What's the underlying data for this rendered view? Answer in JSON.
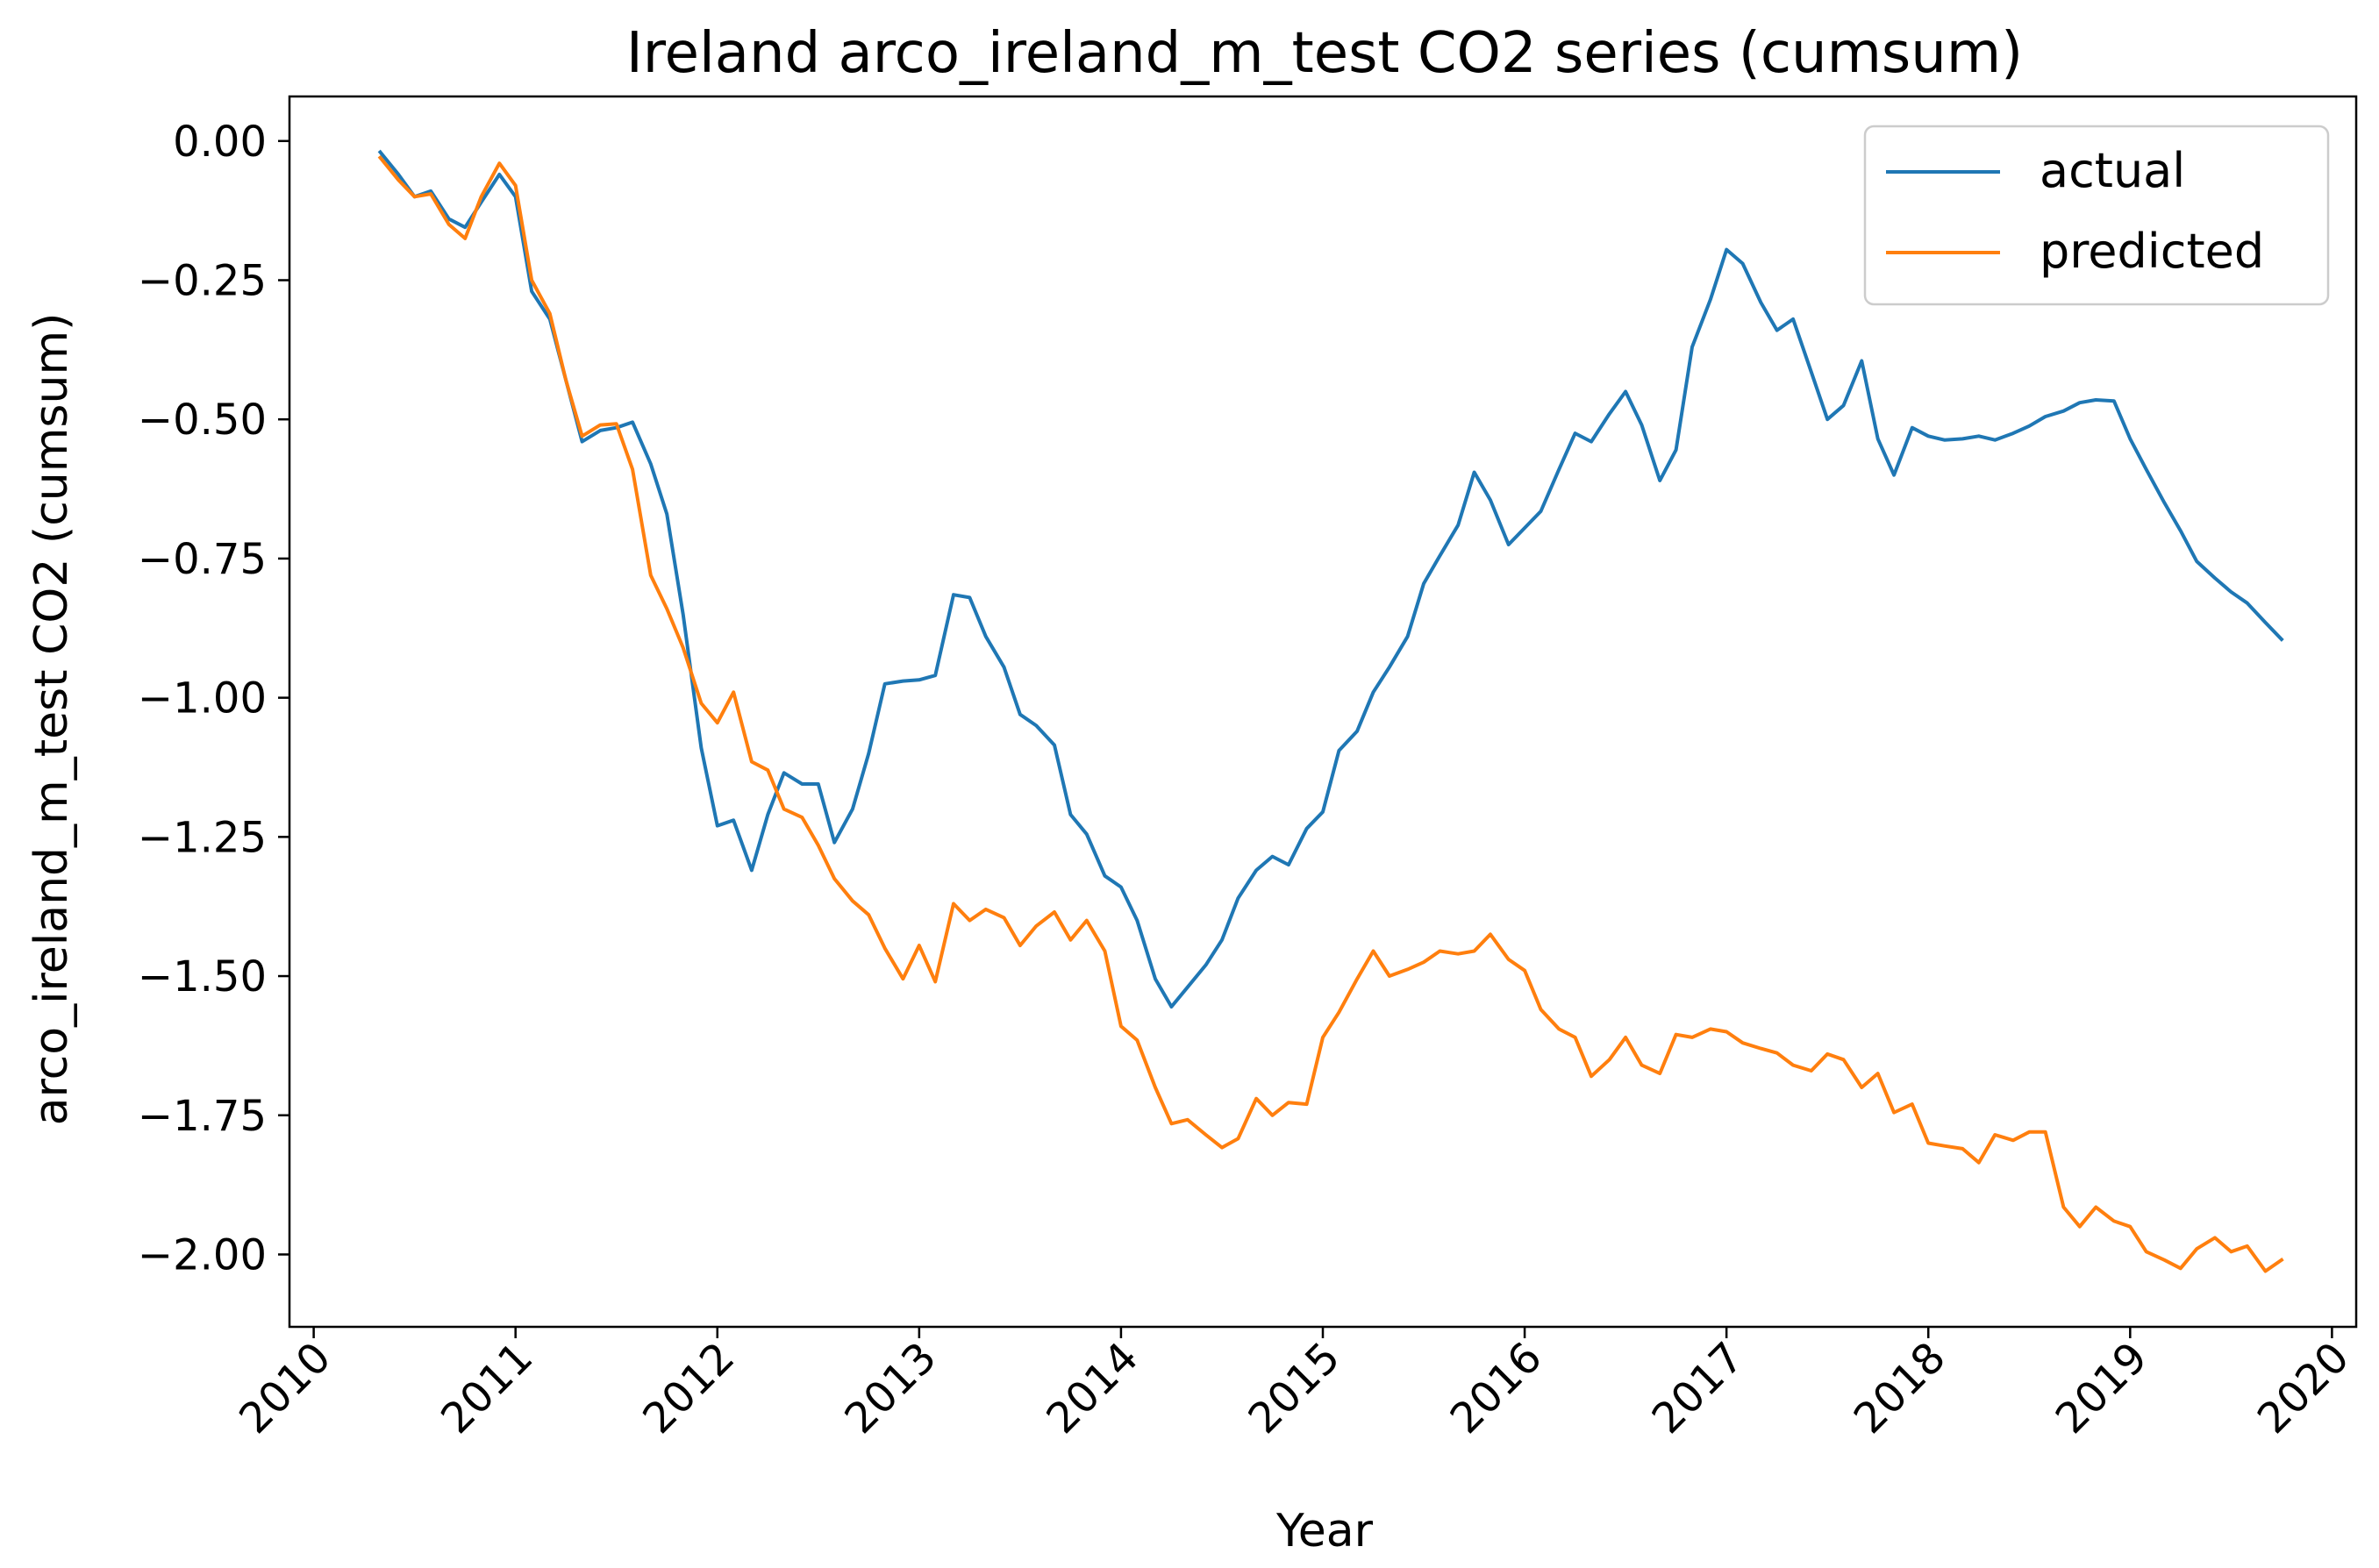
{
  "chart_data": {
    "type": "line",
    "title": "Ireland arco_ireland_m_test CO2 series (cumsum)",
    "xlabel": "Year",
    "ylabel": "arco_ireland_m_test CO2 (cumsum)",
    "xlim": [
      2009.88,
      2020.12
    ],
    "ylim": [
      -2.13,
      0.08
    ],
    "x_ticks": [
      2010,
      2011,
      2012,
      2013,
      2014,
      2015,
      2016,
      2017,
      2018,
      2019,
      2020
    ],
    "x_tick_labels": [
      "2010",
      "2011",
      "2012",
      "2013",
      "2014",
      "2015",
      "2016",
      "2017",
      "2018",
      "2019",
      "2020"
    ],
    "y_ticks": [
      0.0,
      -0.25,
      -0.5,
      -0.75,
      -1.0,
      -1.25,
      -1.5,
      -1.75,
      -2.0
    ],
    "y_tick_labels": [
      "0.00",
      "−0.25",
      "−0.50",
      "−0.75",
      "−1.00",
      "−1.25",
      "−1.50",
      "−1.75",
      "−2.00"
    ],
    "grid": false,
    "legend_position": "top-right",
    "series": [
      {
        "name": "actual",
        "color": "#1f77b4",
        "points": [
          [
            2010.33,
            -0.02
          ],
          [
            2010.42,
            -0.06
          ],
          [
            2010.5,
            -0.1
          ],
          [
            2010.58,
            -0.09
          ],
          [
            2010.67,
            -0.14
          ],
          [
            2010.75,
            -0.155
          ],
          [
            2010.83,
            -0.11
          ],
          [
            2010.92,
            -0.06
          ],
          [
            2011.0,
            -0.1
          ],
          [
            2011.08,
            -0.27
          ],
          [
            2011.17,
            -0.32
          ],
          [
            2011.25,
            -0.43
          ],
          [
            2011.33,
            -0.54
          ],
          [
            2011.42,
            -0.52
          ],
          [
            2011.5,
            -0.515
          ],
          [
            2011.58,
            -0.505
          ],
          [
            2011.67,
            -0.58
          ],
          [
            2011.75,
            -0.67
          ],
          [
            2011.83,
            -0.85
          ],
          [
            2011.92,
            -1.09
          ],
          [
            2012.0,
            -1.23
          ],
          [
            2012.08,
            -1.22
          ],
          [
            2012.17,
            -1.31
          ],
          [
            2012.25,
            -1.21
          ],
          [
            2012.33,
            -1.135
          ],
          [
            2012.42,
            -1.155
          ],
          [
            2012.5,
            -1.155
          ],
          [
            2012.58,
            -1.26
          ],
          [
            2012.67,
            -1.2
          ],
          [
            2012.75,
            -1.1
          ],
          [
            2012.83,
            -0.975
          ],
          [
            2012.92,
            -0.97
          ],
          [
            2013.0,
            -0.968
          ],
          [
            2013.08,
            -0.96
          ],
          [
            2013.17,
            -0.815
          ],
          [
            2013.25,
            -0.82
          ],
          [
            2013.33,
            -0.89
          ],
          [
            2013.42,
            -0.945
          ],
          [
            2013.5,
            -1.03
          ],
          [
            2013.58,
            -1.05
          ],
          [
            2013.67,
            -1.085
          ],
          [
            2013.75,
            -1.21
          ],
          [
            2013.83,
            -1.245
          ],
          [
            2013.92,
            -1.32
          ],
          [
            2014.0,
            -1.34
          ],
          [
            2014.08,
            -1.4
          ],
          [
            2014.17,
            -1.505
          ],
          [
            2014.25,
            -1.555
          ],
          [
            2014.33,
            -1.52
          ],
          [
            2014.42,
            -1.48
          ],
          [
            2014.5,
            -1.435
          ],
          [
            2014.58,
            -1.36
          ],
          [
            2014.67,
            -1.31
          ],
          [
            2014.75,
            -1.285
          ],
          [
            2014.83,
            -1.3
          ],
          [
            2014.92,
            -1.235
          ],
          [
            2015.0,
            -1.205
          ],
          [
            2015.08,
            -1.095
          ],
          [
            2015.17,
            -1.06
          ],
          [
            2015.25,
            -0.99
          ],
          [
            2015.33,
            -0.945
          ],
          [
            2015.42,
            -0.89
          ],
          [
            2015.5,
            -0.795
          ],
          [
            2015.58,
            -0.745
          ],
          [
            2015.67,
            -0.69
          ],
          [
            2015.75,
            -0.595
          ],
          [
            2015.83,
            -0.645
          ],
          [
            2015.92,
            -0.725
          ],
          [
            2016.0,
            -0.695
          ],
          [
            2016.08,
            -0.665
          ],
          [
            2016.17,
            -0.59
          ],
          [
            2016.25,
            -0.525
          ],
          [
            2016.33,
            -0.54
          ],
          [
            2016.42,
            -0.49
          ],
          [
            2016.5,
            -0.45
          ],
          [
            2016.58,
            -0.51
          ],
          [
            2016.67,
            -0.61
          ],
          [
            2016.75,
            -0.555
          ],
          [
            2016.83,
            -0.37
          ],
          [
            2016.92,
            -0.285
          ],
          [
            2017.0,
            -0.195
          ],
          [
            2017.08,
            -0.22
          ],
          [
            2017.17,
            -0.29
          ],
          [
            2017.25,
            -0.34
          ],
          [
            2017.33,
            -0.32
          ],
          [
            2017.42,
            -0.415
          ],
          [
            2017.5,
            -0.5
          ],
          [
            2017.58,
            -0.475
          ],
          [
            2017.67,
            -0.395
          ],
          [
            2017.75,
            -0.535
          ],
          [
            2017.83,
            -0.6
          ],
          [
            2017.92,
            -0.515
          ],
          [
            2018.0,
            -0.53
          ],
          [
            2018.08,
            -0.537
          ],
          [
            2018.17,
            -0.535
          ],
          [
            2018.25,
            -0.53
          ],
          [
            2018.33,
            -0.537
          ],
          [
            2018.42,
            -0.525
          ],
          [
            2018.5,
            -0.512
          ],
          [
            2018.58,
            -0.495
          ],
          [
            2018.67,
            -0.485
          ],
          [
            2018.75,
            -0.47
          ],
          [
            2018.83,
            -0.465
          ],
          [
            2018.92,
            -0.467
          ],
          [
            2019.0,
            -0.535
          ],
          [
            2019.08,
            -0.59
          ],
          [
            2019.17,
            -0.65
          ],
          [
            2019.25,
            -0.7
          ],
          [
            2019.33,
            -0.755
          ],
          [
            2019.42,
            -0.785
          ],
          [
            2019.5,
            -0.81
          ],
          [
            2019.58,
            -0.83
          ],
          [
            2019.67,
            -0.865
          ],
          [
            2019.75,
            -0.895
          ]
        ]
      },
      {
        "name": "predicted",
        "color": "#ff7f0e",
        "points": [
          [
            2010.33,
            -0.03
          ],
          [
            2010.42,
            -0.07
          ],
          [
            2010.5,
            -0.1
          ],
          [
            2010.58,
            -0.095
          ],
          [
            2010.67,
            -0.15
          ],
          [
            2010.75,
            -0.175
          ],
          [
            2010.83,
            -0.1
          ],
          [
            2010.92,
            -0.04
          ],
          [
            2011.0,
            -0.08
          ],
          [
            2011.08,
            -0.25
          ],
          [
            2011.17,
            -0.31
          ],
          [
            2011.25,
            -0.43
          ],
          [
            2011.33,
            -0.53
          ],
          [
            2011.42,
            -0.51
          ],
          [
            2011.5,
            -0.508
          ],
          [
            2011.58,
            -0.59
          ],
          [
            2011.67,
            -0.78
          ],
          [
            2011.75,
            -0.84
          ],
          [
            2011.83,
            -0.91
          ],
          [
            2011.92,
            -1.01
          ],
          [
            2012.0,
            -1.045
          ],
          [
            2012.08,
            -0.99
          ],
          [
            2012.17,
            -1.115
          ],
          [
            2012.25,
            -1.13
          ],
          [
            2012.33,
            -1.2
          ],
          [
            2012.42,
            -1.215
          ],
          [
            2012.5,
            -1.265
          ],
          [
            2012.58,
            -1.325
          ],
          [
            2012.67,
            -1.365
          ],
          [
            2012.75,
            -1.39
          ],
          [
            2012.83,
            -1.45
          ],
          [
            2012.92,
            -1.505
          ],
          [
            2013.0,
            -1.445
          ],
          [
            2013.08,
            -1.51
          ],
          [
            2013.17,
            -1.37
          ],
          [
            2013.25,
            -1.4
          ],
          [
            2013.33,
            -1.38
          ],
          [
            2013.42,
            -1.395
          ],
          [
            2013.5,
            -1.445
          ],
          [
            2013.58,
            -1.41
          ],
          [
            2013.67,
            -1.385
          ],
          [
            2013.75,
            -1.435
          ],
          [
            2013.83,
            -1.4
          ],
          [
            2013.92,
            -1.455
          ],
          [
            2014.0,
            -1.59
          ],
          [
            2014.08,
            -1.615
          ],
          [
            2014.17,
            -1.7
          ],
          [
            2014.25,
            -1.765
          ],
          [
            2014.33,
            -1.758
          ],
          [
            2014.42,
            -1.785
          ],
          [
            2014.5,
            -1.808
          ],
          [
            2014.58,
            -1.792
          ],
          [
            2014.67,
            -1.72
          ],
          [
            2014.75,
            -1.75
          ],
          [
            2014.83,
            -1.727
          ],
          [
            2014.92,
            -1.73
          ],
          [
            2015.0,
            -1.61
          ],
          [
            2015.08,
            -1.565
          ],
          [
            2015.17,
            -1.505
          ],
          [
            2015.25,
            -1.455
          ],
          [
            2015.33,
            -1.5
          ],
          [
            2015.42,
            -1.488
          ],
          [
            2015.5,
            -1.475
          ],
          [
            2015.58,
            -1.455
          ],
          [
            2015.67,
            -1.46
          ],
          [
            2015.75,
            -1.455
          ],
          [
            2015.83,
            -1.425
          ],
          [
            2015.92,
            -1.47
          ],
          [
            2016.0,
            -1.49
          ],
          [
            2016.08,
            -1.56
          ],
          [
            2016.17,
            -1.595
          ],
          [
            2016.25,
            -1.61
          ],
          [
            2016.33,
            -1.68
          ],
          [
            2016.42,
            -1.65
          ],
          [
            2016.5,
            -1.61
          ],
          [
            2016.58,
            -1.66
          ],
          [
            2016.67,
            -1.675
          ],
          [
            2016.75,
            -1.605
          ],
          [
            2016.83,
            -1.61
          ],
          [
            2016.92,
            -1.595
          ],
          [
            2017.0,
            -1.6
          ],
          [
            2017.08,
            -1.62
          ],
          [
            2017.17,
            -1.63
          ],
          [
            2017.25,
            -1.638
          ],
          [
            2017.33,
            -1.66
          ],
          [
            2017.42,
            -1.67
          ],
          [
            2017.5,
            -1.64
          ],
          [
            2017.58,
            -1.65
          ],
          [
            2017.67,
            -1.7
          ],
          [
            2017.75,
            -1.675
          ],
          [
            2017.83,
            -1.745
          ],
          [
            2017.92,
            -1.73
          ],
          [
            2018.0,
            -1.8
          ],
          [
            2018.08,
            -1.805
          ],
          [
            2018.17,
            -1.81
          ],
          [
            2018.25,
            -1.835
          ],
          [
            2018.33,
            -1.785
          ],
          [
            2018.42,
            -1.795
          ],
          [
            2018.5,
            -1.78
          ],
          [
            2018.58,
            -1.78
          ],
          [
            2018.67,
            -1.915
          ],
          [
            2018.75,
            -1.95
          ],
          [
            2018.83,
            -1.915
          ],
          [
            2018.92,
            -1.94
          ],
          [
            2019.0,
            -1.95
          ],
          [
            2019.08,
            -1.995
          ],
          [
            2019.17,
            -2.01
          ],
          [
            2019.25,
            -2.025
          ],
          [
            2019.33,
            -1.99
          ],
          [
            2019.42,
            -1.97
          ],
          [
            2019.5,
            -1.995
          ],
          [
            2019.58,
            -1.985
          ],
          [
            2019.67,
            -2.03
          ],
          [
            2019.75,
            -2.01
          ]
        ]
      }
    ]
  }
}
